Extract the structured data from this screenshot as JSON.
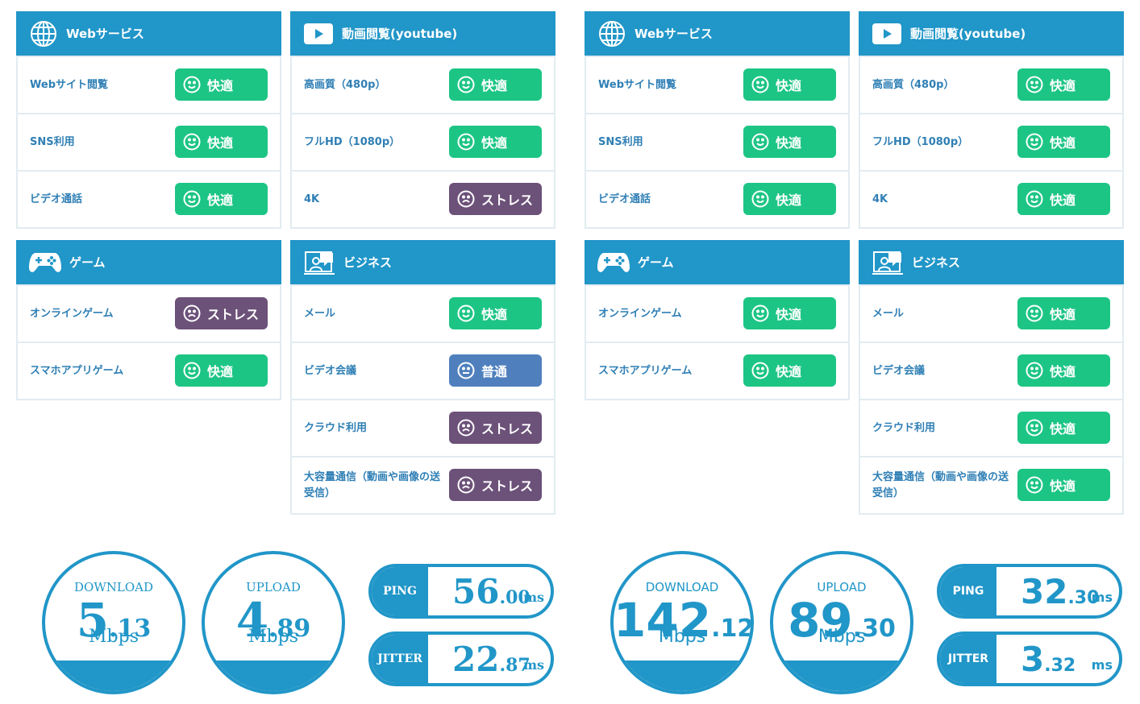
{
  "sides": [
    {
      "panels": [
        {
          "title": "Webサービス",
          "rows": [
            {
              "label": "Webサイト閲覧",
              "status": "快適",
              "color": "#1dc585"
            },
            {
              "label": "SNS利用",
              "status": "快適",
              "color": "#1dc585"
            },
            {
              "label": "ビデオ通話",
              "status": "快適",
              "color": "#1dc585"
            }
          ]
        },
        {
          "title": "動画閲覧(youtube)",
          "rows": [
            {
              "label": "高画質（480p）",
              "status": "快適",
              "color": "#1dc585"
            },
            {
              "label": "フルHD（1080p）",
              "status": "快適",
              "color": "#1dc585"
            },
            {
              "label": "4K",
              "status": "ストレス",
              "color": "#6c5179"
            }
          ]
        },
        {
          "title": "ゲーム",
          "rows": [
            {
              "label": "オンラインゲーム",
              "status": "ストレス",
              "color": "#6c5179"
            },
            {
              "label": "スマホアプリゲーム",
              "status": "快適",
              "color": "#1dc585"
            }
          ]
        },
        {
          "title": "ビジネス",
          "rows": [
            {
              "label": "メール",
              "status": "快適",
              "color": "#1dc585"
            },
            {
              "label": "ビデオ会議",
              "status": "普通",
              "color": "#4f80bd"
            },
            {
              "label": "クラウド利用",
              "status": "ストレス",
              "color": "#6c5179"
            },
            {
              "label": "大容量通信（動画や画像の送受信）",
              "status": "ストレス",
              "color": "#6c5179"
            }
          ]
        }
      ],
      "gauges": [
        {
          "label": "DOWNLOAD",
          "int": "5",
          "dec": ".13",
          "unit": "Mbps"
        },
        {
          "label": "UPLOAD",
          "int": "4",
          "dec": ".89",
          "unit": "Mbps"
        }
      ],
      "pills": [
        {
          "label": "PING",
          "int": "56",
          "dec": ".00",
          "unit": "ms"
        },
        {
          "label": "JITTER",
          "int": "22",
          "dec": ".87",
          "unit": "ms"
        }
      ]
    },
    {
      "panels": [
        {
          "title": "Webサービス",
          "rows": [
            {
              "label": "Webサイト閲覧",
              "status": "快適",
              "color": "#1dc585"
            },
            {
              "label": "SNS利用",
              "status": "快適",
              "color": "#1dc585"
            },
            {
              "label": "ビデオ通話",
              "status": "快適",
              "color": "#1dc585"
            }
          ]
        },
        {
          "title": "動画閲覧(youtube)",
          "rows": [
            {
              "label": "高画質（480p）",
              "status": "快適",
              "color": "#1dc585"
            },
            {
              "label": "フルHD（1080p）",
              "status": "快適",
              "color": "#1dc585"
            },
            {
              "label": "4K",
              "status": "快適",
              "color": "#1dc585"
            }
          ]
        },
        {
          "title": "ゲーム",
          "rows": [
            {
              "label": "オンラインゲーム",
              "status": "快適",
              "color": "#1dc585"
            },
            {
              "label": "スマホアプリゲーム",
              "status": "快適",
              "color": "#1dc585"
            }
          ]
        },
        {
          "title": "ビジネス",
          "rows": [
            {
              "label": "メール",
              "status": "快適",
              "color": "#1dc585"
            },
            {
              "label": "ビデオ会議",
              "status": "快適",
              "color": "#1dc585"
            },
            {
              "label": "クラウド利用",
              "status": "快適",
              "color": "#1dc585"
            },
            {
              "label": "大容量通信（動画や画像の送受信）",
              "status": "快適",
              "color": "#1dc585"
            }
          ]
        }
      ],
      "gauges": [
        {
          "label": "DOWNLOAD",
          "int": "142",
          "dec": ".12",
          "unit": "Mbps"
        },
        {
          "label": "UPLOAD",
          "int": "89",
          "dec": ".30",
          "unit": "Mbps"
        }
      ],
      "pills": [
        {
          "label": "PING",
          "int": "32",
          "dec": ".30",
          "unit": "ms"
        },
        {
          "label": "JITTER",
          "int": "3",
          "dec": ".32",
          "unit": "ms"
        }
      ]
    }
  ]
}
